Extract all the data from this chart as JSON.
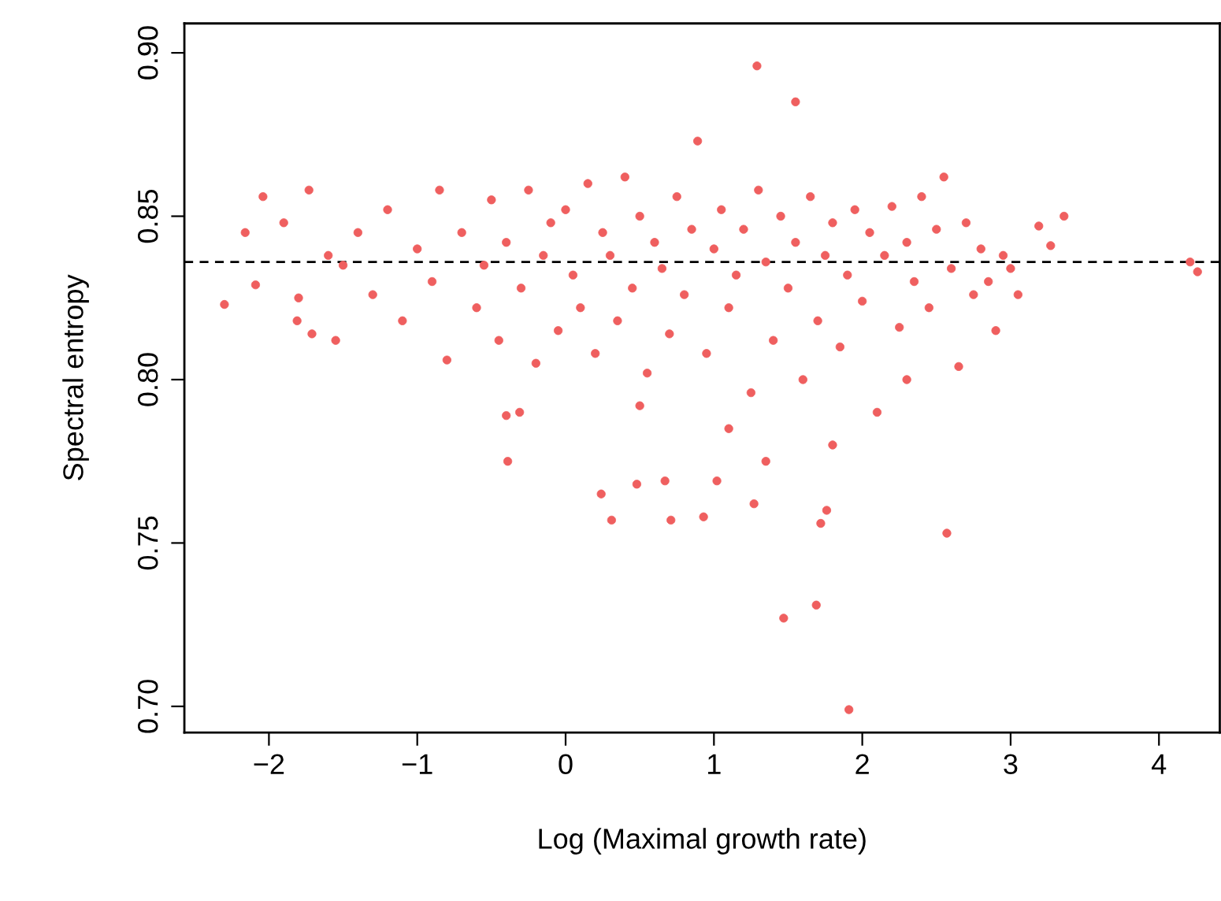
{
  "chart_data": {
    "type": "scatter",
    "xlabel": "Log (Maximal growth rate)",
    "ylabel": "Spectral entropy",
    "xlim": [
      -2.57,
      4.41
    ],
    "ylim": [
      0.692,
      0.909
    ],
    "xticks": [
      {
        "value": -2,
        "label": "−2"
      },
      {
        "value": -1,
        "label": "−1"
      },
      0,
      1,
      2,
      3,
      4
    ],
    "yticks": [
      {
        "value": 0.7,
        "label": "0.70"
      },
      0.75,
      {
        "value": 0.8,
        "label": "0.80"
      },
      0.85,
      {
        "value": 0.9,
        "label": "0.90"
      }
    ],
    "grid": false,
    "legend": false,
    "marker": "circle",
    "ref_lines": [
      {
        "axis": "y",
        "value": 0.836,
        "label": null,
        "color": "#000000",
        "line_style": "dashed"
      }
    ],
    "series": [
      {
        "color": "#ef5f5f",
        "x": [
          1.29,
          1.55,
          1.91,
          1.47,
          1.69,
          0.93,
          1.27,
          1.72,
          1.76,
          2.57,
          1.02,
          -0.4,
          -0.31,
          -0.39,
          0.24,
          0.31,
          0.48,
          0.67,
          0.71,
          4.21,
          4.26,
          3.36,
          3.19,
          3.27,
          2.9,
          -2.3,
          -2.04,
          -1.73,
          -1.71,
          -1.55,
          -2.16,
          -2.09,
          -1.81,
          -1.9,
          -1.8,
          -1.6,
          -1.5,
          -1.4,
          -1.3,
          -1.2,
          -1.1,
          -1.0,
          -0.9,
          -0.85,
          -0.8,
          -0.7,
          -0.6,
          -0.55,
          -0.5,
          -0.45,
          -0.4,
          -0.3,
          -0.25,
          -0.2,
          -0.15,
          -0.1,
          -0.05,
          0.0,
          0.05,
          0.1,
          0.15,
          0.2,
          0.25,
          0.3,
          0.35,
          0.4,
          0.45,
          0.5,
          0.55,
          0.6,
          0.65,
          0.7,
          0.75,
          0.8,
          0.85,
          0.89,
          0.95,
          1.0,
          1.05,
          1.1,
          1.15,
          1.2,
          1.25,
          1.3,
          1.35,
          1.4,
          1.45,
          1.5,
          1.55,
          1.6,
          1.65,
          1.7,
          1.75,
          1.8,
          1.85,
          1.9,
          1.95,
          2.0,
          2.05,
          2.1,
          2.15,
          2.2,
          2.25,
          2.3,
          2.35,
          2.4,
          2.45,
          2.5,
          2.55,
          2.6,
          2.65,
          2.7,
          2.75,
          2.8,
          2.85,
          2.95,
          3.0,
          3.05,
          1.1,
          1.8,
          0.5,
          2.3,
          1.35
        ],
        "values": [
          0.896,
          0.885,
          0.699,
          0.727,
          0.731,
          0.758,
          0.762,
          0.756,
          0.76,
          0.753,
          0.769,
          0.789,
          0.79,
          0.775,
          0.765,
          0.757,
          0.768,
          0.769,
          0.757,
          0.836,
          0.833,
          0.85,
          0.847,
          0.841,
          0.815,
          0.823,
          0.856,
          0.858,
          0.814,
          0.812,
          0.845,
          0.829,
          0.818,
          0.848,
          0.825,
          0.838,
          0.835,
          0.845,
          0.826,
          0.852,
          0.818,
          0.84,
          0.83,
          0.858,
          0.806,
          0.845,
          0.822,
          0.835,
          0.855,
          0.812,
          0.842,
          0.828,
          0.858,
          0.805,
          0.838,
          0.848,
          0.815,
          0.852,
          0.832,
          0.822,
          0.86,
          0.808,
          0.845,
          0.838,
          0.818,
          0.862,
          0.828,
          0.85,
          0.802,
          0.842,
          0.834,
          0.814,
          0.856,
          0.826,
          0.846,
          0.873,
          0.808,
          0.84,
          0.852,
          0.822,
          0.832,
          0.846,
          0.796,
          0.858,
          0.836,
          0.812,
          0.85,
          0.828,
          0.842,
          0.8,
          0.856,
          0.818,
          0.838,
          0.848,
          0.81,
          0.832,
          0.852,
          0.824,
          0.845,
          0.79,
          0.838,
          0.853,
          0.816,
          0.842,
          0.83,
          0.856,
          0.822,
          0.846,
          0.862,
          0.834,
          0.804,
          0.848,
          0.826,
          0.84,
          0.83,
          0.838,
          0.834,
          0.826,
          0.785,
          0.78,
          0.792,
          0.8,
          0.775
        ]
      }
    ]
  }
}
